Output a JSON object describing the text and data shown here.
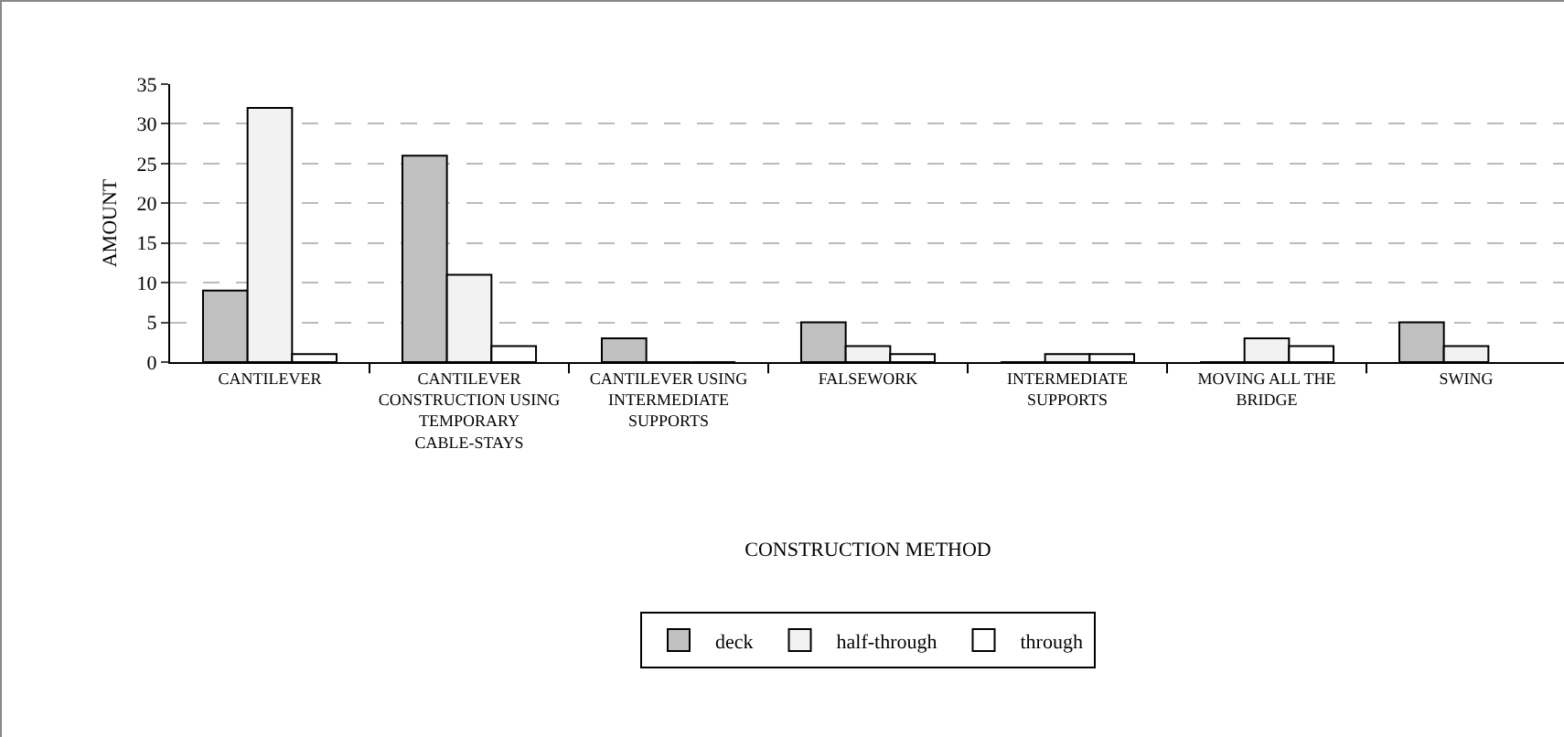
{
  "chart_data": {
    "type": "bar",
    "xlabel": "CONSTRUCTION METHOD",
    "ylabel": "AMOUNT",
    "categories": [
      "CANTILEVER",
      "CANTILEVER CONSTRUCTION USING TEMPORARY CABLE-STAYS",
      "CANTILEVER USING INTERMEDIATE SUPPORTS",
      "FALSEWORK",
      "INTERMEDIATE SUPPORTS",
      "MOVING ALL THE BRIDGE",
      "SWING"
    ],
    "series": [
      {
        "name": "deck",
        "color": "#c0c0c0",
        "values": [
          9,
          26,
          3,
          5,
          0,
          0,
          5
        ]
      },
      {
        "name": "half-through",
        "color": "#f2f2f2",
        "values": [
          32,
          11,
          0,
          2,
          1,
          3,
          2
        ]
      },
      {
        "name": "through",
        "color": "#ffffff",
        "values": [
          1,
          2,
          0,
          1,
          1,
          2,
          null
        ]
      }
    ],
    "ylim": [
      0,
      35
    ],
    "yticks": [
      0,
      5,
      10,
      15,
      20,
      25,
      30,
      35
    ],
    "grid": "y",
    "legend": "bottom"
  }
}
